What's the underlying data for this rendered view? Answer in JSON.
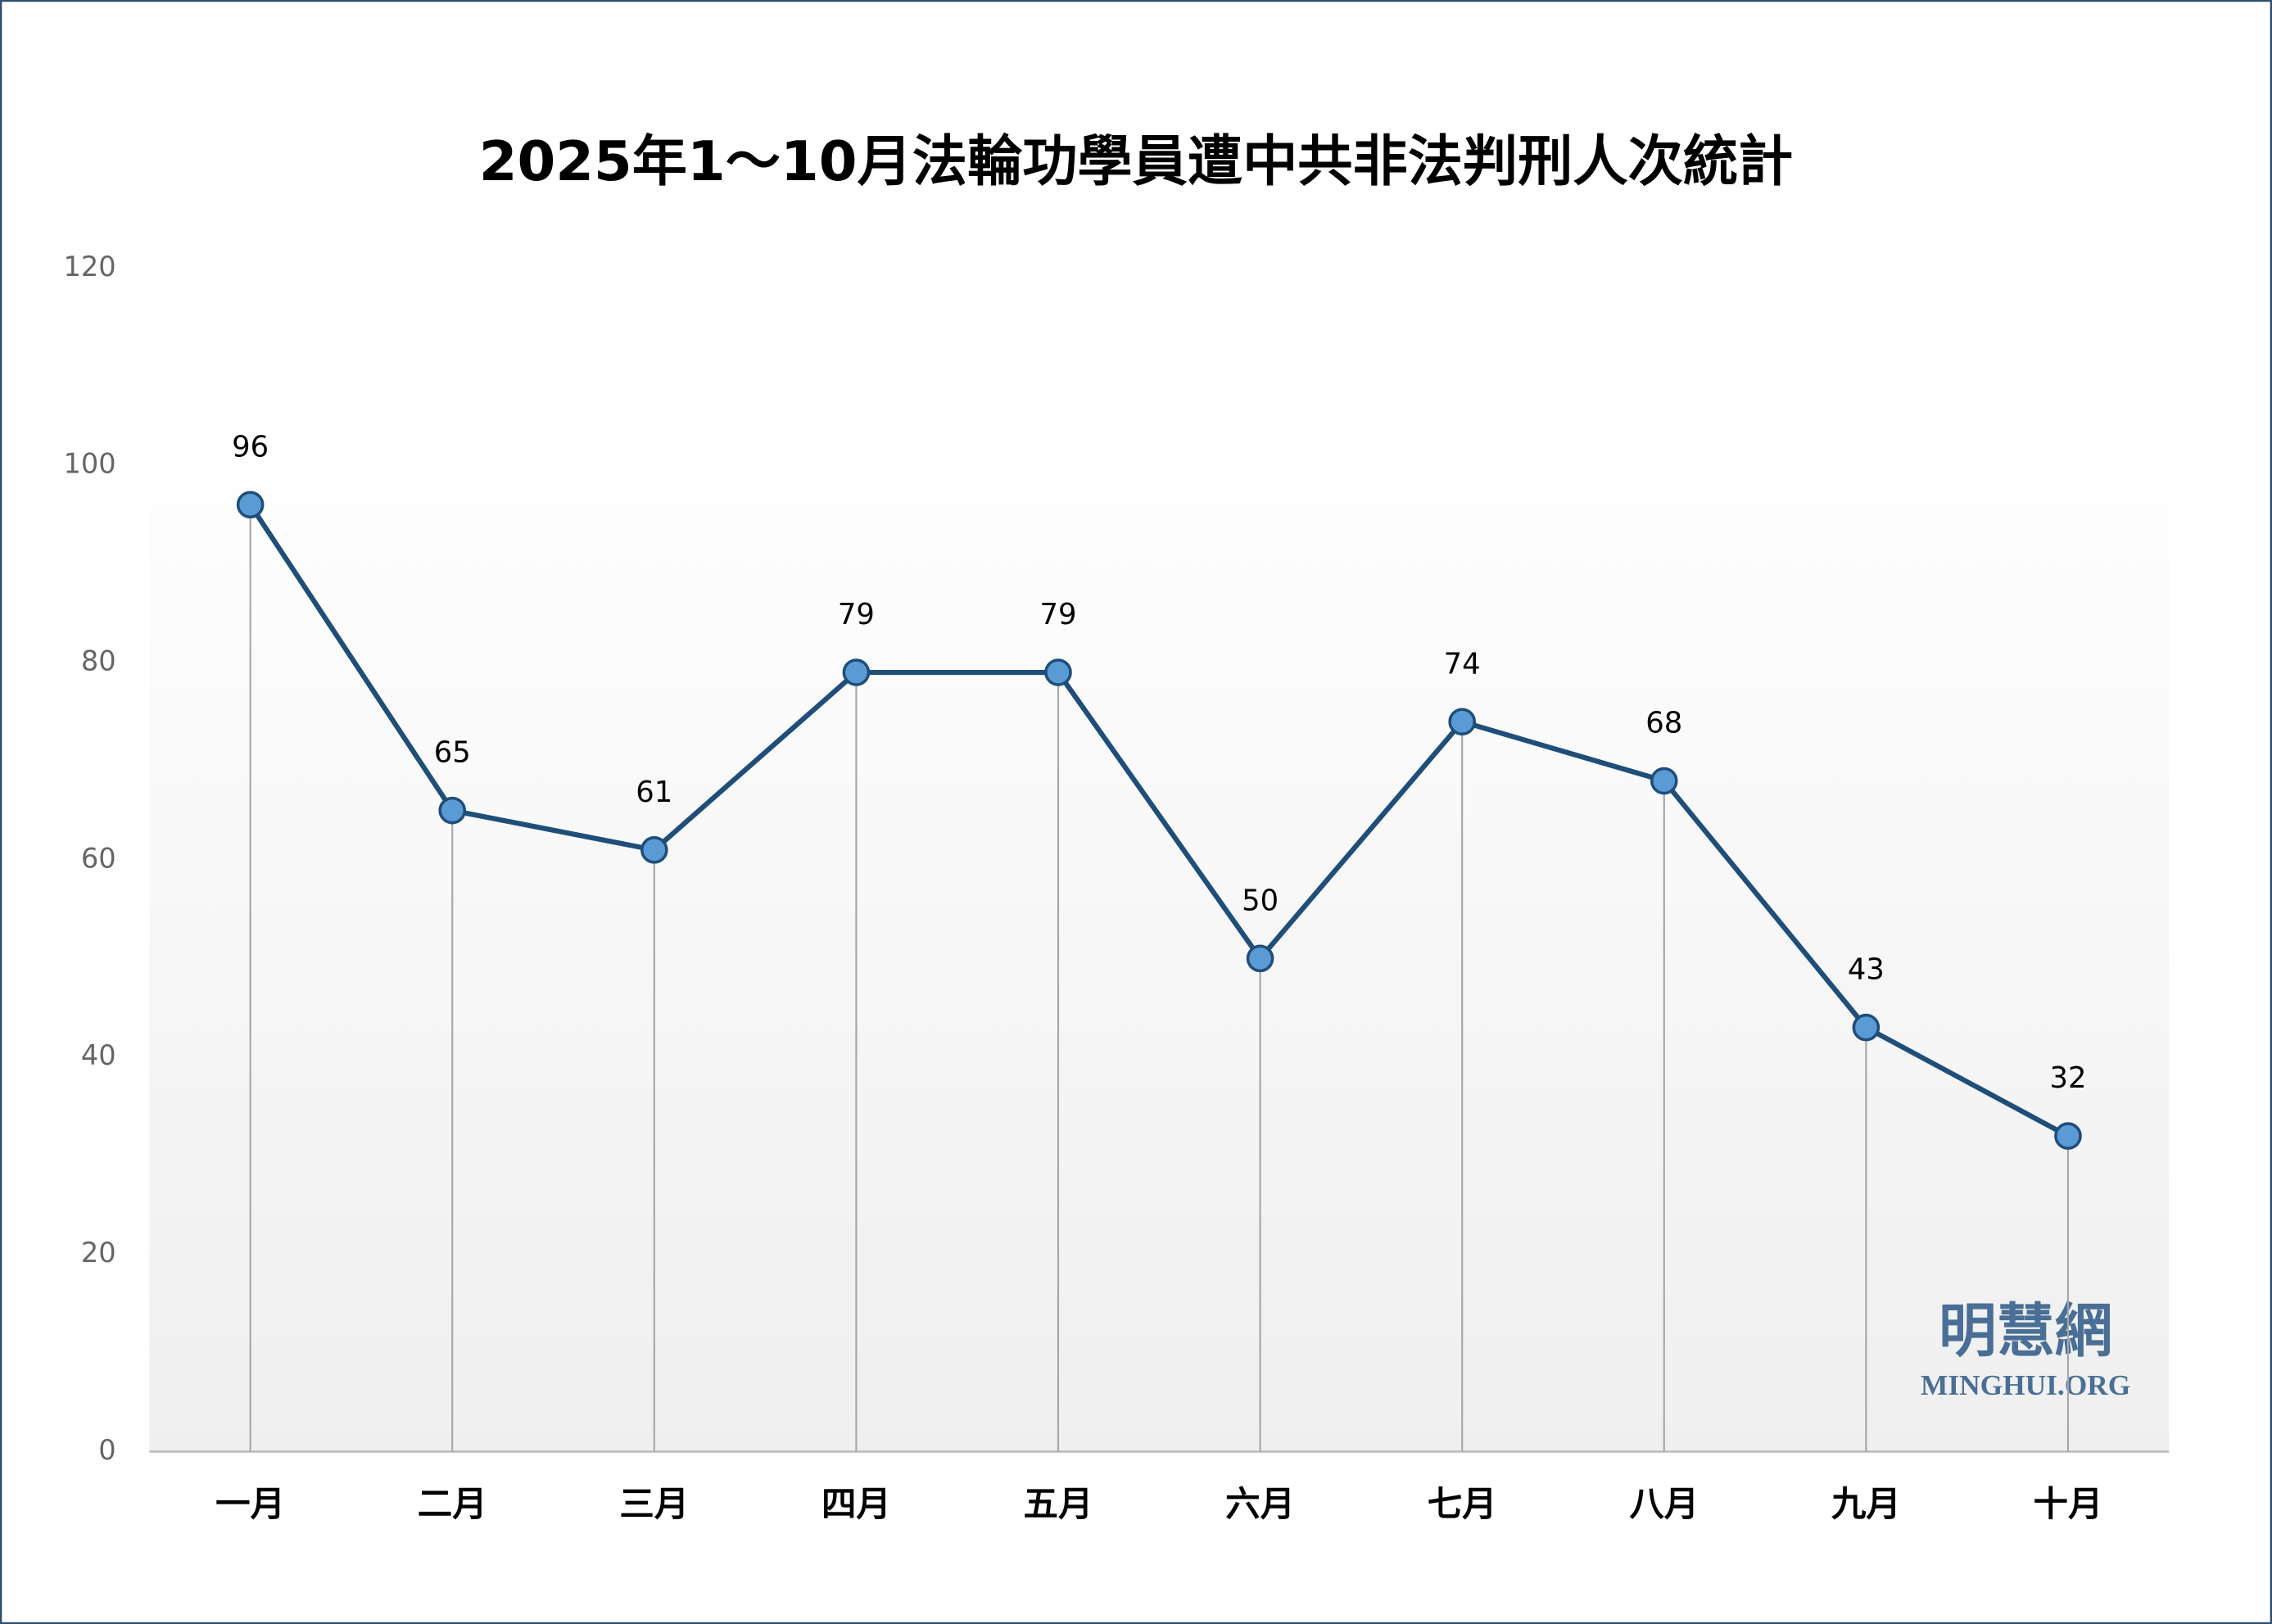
{
  "chart_data": {
    "type": "line",
    "title": "2025年1～10月法輪功學員遭中共非法判刑人次統計",
    "categories": [
      "一月",
      "二月",
      "三月",
      "四月",
      "五月",
      "六月",
      "七月",
      "八月",
      "九月",
      "十月"
    ],
    "values": [
      96,
      65,
      61,
      79,
      79,
      50,
      74,
      68,
      43,
      32
    ],
    "color": "#1f4e79",
    "marker_color": "#5b9bd5",
    "ylim": [
      0,
      120
    ],
    "yticks": [
      0,
      20,
      40,
      60,
      80,
      100,
      120
    ],
    "drop_lines": true,
    "data_labels": true
  },
  "watermark": {
    "title": "明慧網",
    "subtitle": "MINGHUI.ORG"
  }
}
